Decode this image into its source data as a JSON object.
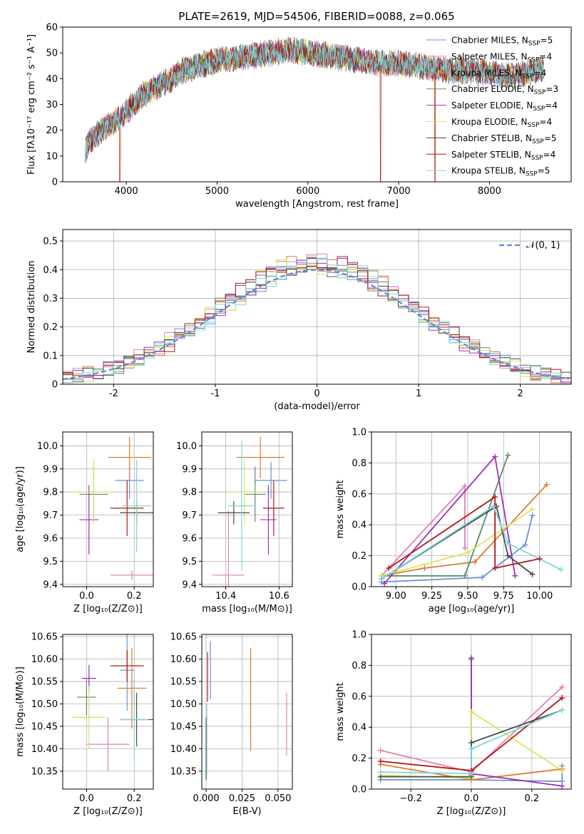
{
  "figure": {
    "title": "PLATE=2619, MJD=54506, FIBERID=0088, z=0.065",
    "legend": [
      {
        "label": "Chabrier MILES, N",
        "sub": "SSP",
        "suffix": "=5",
        "color": "#6b8fd6"
      },
      {
        "label": "Salpeter MILES, N",
        "sub": "SSP",
        "suffix": "=4",
        "color": "#e57fb8"
      },
      {
        "label": "Kroupa MILES, N",
        "sub": "SSP",
        "suffix": "=4",
        "color": "#e07b28"
      },
      {
        "label": "Chabrier ELODIE, N",
        "sub": "SSP",
        "suffix": "=3",
        "color": "#5a8a6e"
      },
      {
        "label": "Salpeter ELODIE, N",
        "sub": "SSP",
        "suffix": "=4",
        "color": "#9b30b8"
      },
      {
        "label": "Kroupa ELODIE, N",
        "sub": "SSP",
        "suffix": "=4",
        "color": "#d8e65a"
      },
      {
        "label": "Chabrier STELIB, N",
        "sub": "SSP",
        "suffix": "=5",
        "color": "#4a4a4a"
      },
      {
        "label": "Salpeter STELIB, N",
        "sub": "SSP",
        "suffix": "=4",
        "color": "#b01818"
      },
      {
        "label": "Kroupa STELIB, N",
        "sub": "SSP",
        "suffix": "=5",
        "color": "#7dd6dc"
      }
    ]
  },
  "chart_data": [
    {
      "id": "spectrum",
      "type": "line",
      "xlabel": "wavelength [Angstrom, rest frame]",
      "ylabel": "Flux [fλ10⁻¹⁷ erg cm⁻² s⁻¹ A⁻¹]",
      "xlim": [
        3300,
        8900
      ],
      "ylim": [
        0,
        60
      ],
      "xticks": [
        4000,
        5000,
        6000,
        7000,
        8000
      ],
      "yticks": [
        0,
        10,
        20,
        30,
        40,
        50,
        60
      ],
      "x": [
        3550,
        3600,
        3700,
        3800,
        3900,
        4000,
        4100,
        4200,
        4300,
        4400,
        4500,
        4600,
        4700,
        4800,
        4900,
        5000,
        5200,
        5400,
        5600,
        5800,
        6000,
        6200,
        6400,
        6600,
        6800,
        7000,
        7200,
        7400,
        7600,
        7800,
        8000,
        8200,
        8400,
        8600
      ],
      "y": [
        12,
        16,
        19,
        22,
        24,
        27,
        31,
        34,
        36,
        38,
        40,
        43,
        44,
        45,
        46,
        47,
        48,
        49,
        50,
        51,
        50,
        49,
        48,
        47,
        46,
        46,
        45,
        44,
        43,
        43,
        42,
        41,
        42,
        44
      ],
      "dips": [
        {
          "x": 3930,
          "y": 0
        },
        {
          "x": 6800,
          "y": 0
        },
        {
          "x": 7400,
          "y": 0
        }
      ]
    },
    {
      "id": "residuals",
      "type": "histogram",
      "xlabel": "(data-model)/error",
      "ylabel": "Normed distribution",
      "xlim": [
        -2.5,
        2.5
      ],
      "ylim": [
        0,
        0.54
      ],
      "xticks": [
        -2,
        -1,
        0,
        1,
        2
      ],
      "yticks": [
        0.0,
        0.1,
        0.2,
        0.3,
        0.4,
        0.5
      ],
      "bin_width": 0.1,
      "legend": "𝒩(0, 1)",
      "gaussian_color": "#5b8bd9"
    },
    {
      "id": "age-z",
      "type": "scatter",
      "xlabel": "Z [log₁₀(Z/Z⊙)]",
      "ylabel": "age  [log₁₀(age/yr)]",
      "xlim": [
        -0.1,
        0.28
      ],
      "ylim": [
        9.39,
        10.06
      ],
      "xticks": [
        "0.0",
        "0.2"
      ],
      "yticks": [
        "9.4",
        "9.5",
        "9.6",
        "9.7",
        "9.8",
        "9.9",
        "10.0"
      ],
      "points": [
        {
          "c": 0,
          "x": 0.18,
          "y": 9.85,
          "xerr": 0.06,
          "yerr": 0.08
        },
        {
          "c": 1,
          "x": 0.19,
          "y": 9.44,
          "xerr": 0.09,
          "yerr": 0.02
        },
        {
          "c": 2,
          "x": 0.18,
          "y": 9.95,
          "xerr": 0.09,
          "yerr": 0.09
        },
        {
          "c": 3,
          "x": 0.03,
          "y": 9.79,
          "xerr": 0.06,
          "yerr": 0.12
        },
        {
          "c": 4,
          "x": 0.01,
          "y": 9.68,
          "xerr": 0.04,
          "yerr": 0.15
        },
        {
          "c": 5,
          "x": 0.03,
          "y": 9.8,
          "xerr": 0.09,
          "yerr": 0.14
        },
        {
          "c": 6,
          "x": 0.21,
          "y": 9.71,
          "xerr": 0.07,
          "yerr": 0.05
        },
        {
          "c": 7,
          "x": 0.17,
          "y": 9.73,
          "xerr": 0.07,
          "yerr": 0.12
        },
        {
          "c": 8,
          "x": 0.21,
          "y": 9.74,
          "xerr": 0.06,
          "yerr": 0.2
        }
      ]
    },
    {
      "id": "age-mass",
      "type": "scatter",
      "xlabel": "mass [log₁₀(M/M⊙)]",
      "ylabel": "",
      "xlim": [
        10.31,
        10.65
      ],
      "ylim": [
        9.39,
        10.06
      ],
      "xticks": [
        "10.4",
        "10.6"
      ],
      "yticks": [
        "9.4",
        "9.5",
        "9.6",
        "9.7",
        "9.8",
        "9.9",
        "10.0"
      ],
      "points": [
        {
          "c": 0,
          "x": 10.57,
          "y": 9.85,
          "xerr": 0.06,
          "yerr": 0.08
        },
        {
          "c": 1,
          "x": 10.41,
          "y": 9.44,
          "xerr": 0.06,
          "yerr": 0.28
        },
        {
          "c": 2,
          "x": 10.53,
          "y": 9.95,
          "xerr": 0.09,
          "yerr": 0.09
        },
        {
          "c": 3,
          "x": 10.51,
          "y": 9.79,
          "xerr": 0.04,
          "yerr": 0.12
        },
        {
          "c": 4,
          "x": 10.56,
          "y": 9.68,
          "xerr": 0.03,
          "yerr": 0.15
        },
        {
          "c": 5,
          "x": 10.47,
          "y": 9.8,
          "xerr": 0.06,
          "yerr": 0.14
        },
        {
          "c": 6,
          "x": 10.43,
          "y": 9.71,
          "xerr": 0.06,
          "yerr": 0.05
        },
        {
          "c": 7,
          "x": 10.58,
          "y": 9.73,
          "xerr": 0.04,
          "yerr": 0.12
        },
        {
          "c": 8,
          "x": 10.46,
          "y": 9.74,
          "xerr": 0.05,
          "yerr": 0.28
        }
      ]
    },
    {
      "id": "mw-age",
      "type": "line",
      "xlabel": "age  [log₁₀(age/yr)]",
      "ylabel": "mass weight",
      "xlim": [
        8.83,
        10.22
      ],
      "ylim": [
        0,
        1
      ],
      "xticks": [
        "9.00",
        "9.25",
        "9.50",
        "9.75",
        "10.00"
      ],
      "yticks": [
        "0.0",
        "0.2",
        "0.4",
        "0.6",
        "0.8",
        "1.0"
      ],
      "series": [
        {
          "c": 0,
          "x": [
            8.9,
            9.6,
            9.9,
            9.95
          ],
          "y": [
            0.03,
            0.06,
            0.27,
            0.46
          ]
        },
        {
          "c": 1,
          "x": [
            8.9,
            9.48,
            9.48
          ],
          "y": [
            0.07,
            0.65,
            0.25
          ]
        },
        {
          "c": 2,
          "x": [
            8.9,
            9.2,
            9.55,
            10.05
          ],
          "y": [
            0.07,
            0.12,
            0.16,
            0.66
          ]
        },
        {
          "c": 3,
          "x": [
            8.9,
            9.48,
            9.78
          ],
          "y": [
            0.07,
            0.07,
            0.85
          ]
        },
        {
          "c": 4,
          "x": [
            8.92,
            9.69,
            9.83
          ],
          "y": [
            0.02,
            0.84,
            0.07
          ]
        },
        {
          "c": 5,
          "x": [
            8.9,
            9.5,
            9.95
          ],
          "y": [
            0.07,
            0.22,
            0.5
          ]
        },
        {
          "c": 6,
          "x": [
            8.9,
            9.7,
            9.78,
            9.95
          ],
          "y": [
            0.05,
            0.52,
            0.2,
            0.08
          ]
        },
        {
          "c": 7,
          "x": [
            8.95,
            9.69,
            9.69,
            10.0
          ],
          "y": [
            0.12,
            0.58,
            0.12,
            0.18
          ]
        },
        {
          "c": 8,
          "x": [
            8.9,
            9.68,
            9.78,
            10.15
          ],
          "y": [
            0.05,
            0.52,
            0.28,
            0.11
          ]
        }
      ]
    },
    {
      "id": "mass-z",
      "type": "scatter",
      "xlabel": "Z [log₁₀(Z/Z⊙)]",
      "ylabel": "mass [log₁₀(M/M⊙)]",
      "xlim": [
        -0.1,
        0.28
      ],
      "ylim": [
        10.31,
        10.655
      ],
      "xticks": [
        "0.0",
        "0.2"
      ],
      "yticks": [
        "10.35",
        "10.40",
        "10.45",
        "10.50",
        "10.55",
        "10.60",
        "10.65"
      ],
      "points": [
        {
          "c": 0,
          "x": 0.17,
          "y": 10.575,
          "xerr": 0.03,
          "yerr": 0.09
        },
        {
          "c": 1,
          "x": 0.09,
          "y": 10.41,
          "xerr": 0.09,
          "yerr": 0.06
        },
        {
          "c": 2,
          "x": 0.19,
          "y": 10.535,
          "xerr": 0.06,
          "yerr": 0.09
        },
        {
          "c": 3,
          "x": 0.0,
          "y": 10.515,
          "xerr": 0.04,
          "yerr": 0.04
        },
        {
          "c": 4,
          "x": 0.01,
          "y": 10.557,
          "xerr": 0.03,
          "yerr": 0.03
        },
        {
          "c": 5,
          "x": 0.01,
          "y": 10.47,
          "xerr": 0.07,
          "yerr": 0.07
        },
        {
          "c": 6,
          "x": 0.21,
          "y": 10.465,
          "xerr": 0.07,
          "yerr": 0.06
        },
        {
          "c": 7,
          "x": 0.17,
          "y": 10.585,
          "xerr": 0.07,
          "yerr": 0.035
        },
        {
          "c": 8,
          "x": 0.2,
          "y": 10.465,
          "xerr": 0.06,
          "yerr": 0.09
        }
      ]
    },
    {
      "id": "mass-ebv",
      "type": "errorbar",
      "xlabel": "E(B-V)",
      "ylabel": "",
      "xlim": [
        -0.003,
        0.06
      ],
      "ylim": [
        10.31,
        10.655
      ],
      "xticks": [
        "0.000",
        "0.025",
        "0.050"
      ],
      "yticks": [
        "10.35",
        "10.40",
        "10.45",
        "10.50",
        "10.55",
        "10.60",
        "10.65"
      ],
      "points": [
        {
          "c": 0,
          "x": 0.003,
          "y": 10.575,
          "yerr": 0.065
        },
        {
          "c": 2,
          "x": 0.031,
          "y": 10.51,
          "yerr": 0.115
        },
        {
          "c": 1,
          "x": 0.056,
          "y": 10.455,
          "yerr": 0.07
        },
        {
          "c": 7,
          "x": 0.001,
          "y": 10.56,
          "yerr": 0.055
        },
        {
          "c": 6,
          "x": 0.0,
          "y": 10.4,
          "yerr": 0.07
        },
        {
          "c": 8,
          "x": 0.0005,
          "y": 10.42,
          "yerr": 0.08
        }
      ]
    },
    {
      "id": "mw-z",
      "type": "line",
      "xlabel": "Z [log₁₀(Z/Z⊙)]",
      "ylabel": "mass weight",
      "xlim": [
        -0.33,
        0.33
      ],
      "ylim": [
        0,
        1
      ],
      "xticks": [
        "−0.2",
        "0.0",
        "0.2"
      ],
      "yticks": [
        "0.0",
        "0.2",
        "0.4",
        "0.6",
        "0.8",
        "1.0"
      ],
      "series": [
        {
          "c": 0,
          "x": [
            -0.3,
            0.0,
            0.3,
            0.3
          ],
          "y": [
            0.06,
            0.06,
            0.05,
            0.15
          ]
        },
        {
          "c": 1,
          "x": [
            -0.3,
            0.0,
            0.3
          ],
          "y": [
            0.25,
            0.11,
            0.66
          ]
        },
        {
          "c": 2,
          "x": [
            -0.3,
            0.0,
            0.3
          ],
          "y": [
            0.16,
            0.06,
            0.13
          ]
        },
        {
          "c": 3,
          "x": [
            0.0,
            0.0
          ],
          "y": [
            0.85,
            0.09
          ]
        },
        {
          "c": 4,
          "x": [
            0.0,
            0.0,
            0.3
          ],
          "y": [
            0.84,
            0.1,
            0.02
          ]
        },
        {
          "c": 5,
          "x": [
            -0.3,
            0.0,
            0.0,
            0.3
          ],
          "y": [
            0.09,
            0.07,
            0.5,
            0.12
          ]
        },
        {
          "c": 6,
          "x": [
            -0.3,
            0.0,
            0.0,
            0.3
          ],
          "y": [
            0.08,
            0.08,
            0.3,
            0.51
          ]
        },
        {
          "c": 7,
          "x": [
            -0.3,
            0.0,
            0.0,
            0.3
          ],
          "y": [
            0.18,
            0.12,
            0.12,
            0.59
          ]
        },
        {
          "c": 8,
          "x": [
            -0.3,
            0.0,
            0.0,
            0.3
          ],
          "y": [
            0.11,
            0.1,
            0.26,
            0.51
          ]
        }
      ]
    }
  ]
}
